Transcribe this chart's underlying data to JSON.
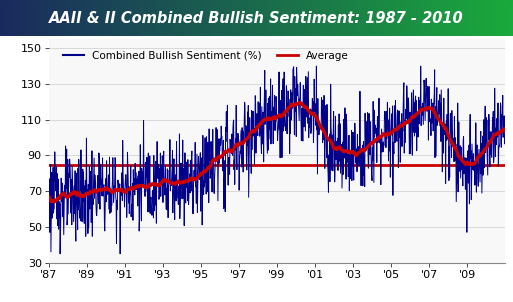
{
  "title_italic": "AAII & II",
  "title_rest": " Combined Bullish Sentiment: 1987 - 2010",
  "title_bg_left": "#1a2a5e",
  "title_bg_right": "#1aaa3c",
  "ylabel_values": [
    30,
    50,
    70,
    90,
    110,
    130,
    150
  ],
  "xtick_labels": [
    "'87",
    "'89",
    "'91",
    "'93",
    "'95",
    "'97",
    "'99",
    "'01",
    "'03",
    "'05",
    "'07",
    "'09"
  ],
  "avg_line_value": 84.5,
  "legend_sentiment_label": "Combined Bullish Sentiment (%)",
  "legend_avg_label": "Average",
  "line_color": "#00008B",
  "avg_color": "#CC0000",
  "hline_color": "#CC0000",
  "bg_plot": "#f8f8f8",
  "ylim": [
    30,
    155
  ]
}
